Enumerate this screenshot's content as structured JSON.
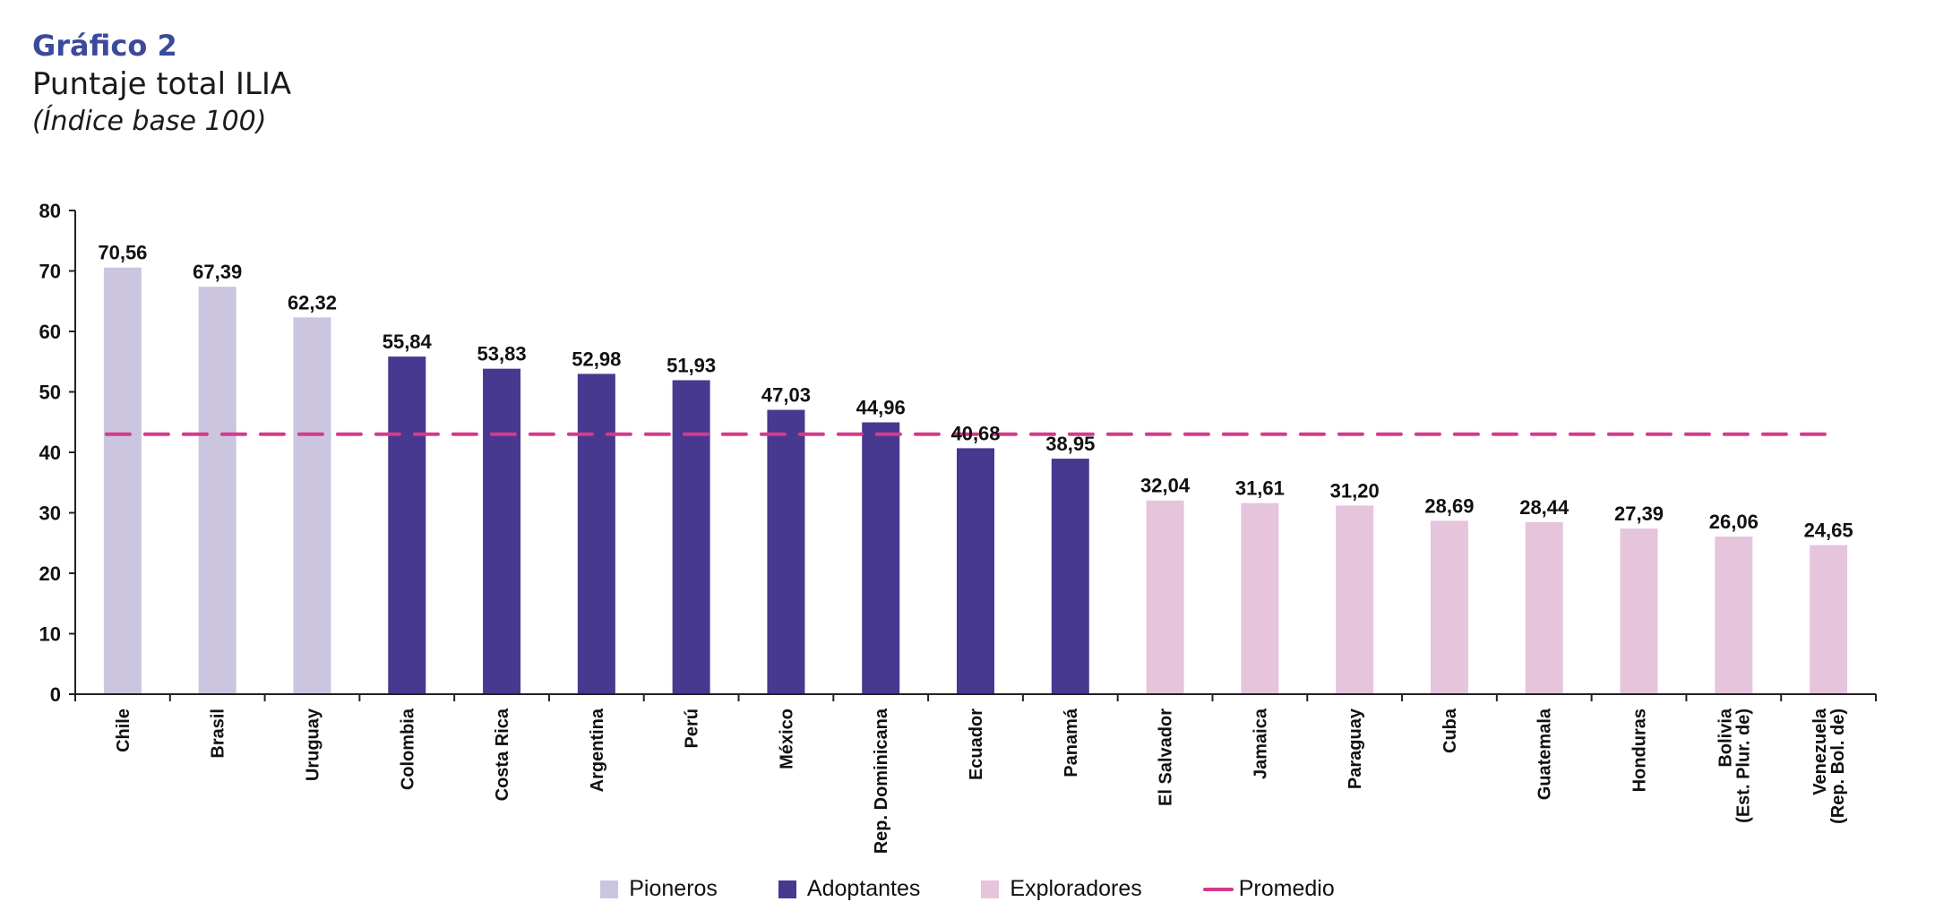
{
  "header": {
    "kicker": "Gráfico 2",
    "title": "Puntaje total ILIA",
    "subtitle": "(Índice base 100)"
  },
  "colors": {
    "kicker": "#3b4a9a",
    "Pioneros": "#cbc5e0",
    "Adoptantes": "#473990",
    "Exploradores": "#e6c4dc",
    "Promedio": "#d63a8a"
  },
  "chart_data": {
    "type": "bar",
    "title": "Puntaje total ILIA",
    "subtitle": "(Índice base 100)",
    "xlabel": "",
    "ylabel": "",
    "ylim": [
      0,
      80
    ],
    "yticks": [
      0,
      10,
      20,
      30,
      40,
      50,
      60,
      70,
      80
    ],
    "grid": false,
    "legend_position": "bottom-center",
    "categories": [
      [
        "Chile"
      ],
      [
        "Brasil"
      ],
      [
        "Uruguay"
      ],
      [
        "Colombia"
      ],
      [
        "Costa Rica"
      ],
      [
        "Argentina"
      ],
      [
        "Perú"
      ],
      [
        "México"
      ],
      [
        "Rep. Dominicana"
      ],
      [
        "Ecuador"
      ],
      [
        "Panamá"
      ],
      [
        "El Salvador"
      ],
      [
        "Jamaica"
      ],
      [
        "Paraguay"
      ],
      [
        "Cuba"
      ],
      [
        "Guatemala"
      ],
      [
        "Honduras"
      ],
      [
        "Bolivia",
        "(Est. Plur. de)"
      ],
      [
        "Venezuela",
        "(Rep. Bol. de)"
      ]
    ],
    "values": [
      70.56,
      67.39,
      62.32,
      55.84,
      53.83,
      52.98,
      51.93,
      47.03,
      44.96,
      40.68,
      38.95,
      32.04,
      31.61,
      31.2,
      28.69,
      28.44,
      27.39,
      26.06,
      24.65
    ],
    "value_labels": [
      "70,56",
      "67,39",
      "62,32",
      "55,84",
      "53,83",
      "52,98",
      "51,93",
      "47,03",
      "44,96",
      "40,68",
      "38,95",
      "32,04",
      "31,61",
      "31,20",
      "28,69",
      "28,44",
      "27,39",
      "26,06",
      "24,65"
    ],
    "groups": [
      "Pioneros",
      "Pioneros",
      "Pioneros",
      "Adoptantes",
      "Adoptantes",
      "Adoptantes",
      "Adoptantes",
      "Adoptantes",
      "Adoptantes",
      "Adoptantes",
      "Adoptantes",
      "Exploradores",
      "Exploradores",
      "Exploradores",
      "Exploradores",
      "Exploradores",
      "Exploradores",
      "Exploradores",
      "Exploradores"
    ],
    "reference_line": {
      "name": "Promedio",
      "value": 43.0,
      "style": "dashed"
    },
    "legend": [
      {
        "label": "Pioneros",
        "kind": "swatch"
      },
      {
        "label": "Adoptantes",
        "kind": "swatch"
      },
      {
        "label": "Exploradores",
        "kind": "swatch"
      },
      {
        "label": "Promedio",
        "kind": "line"
      }
    ]
  }
}
